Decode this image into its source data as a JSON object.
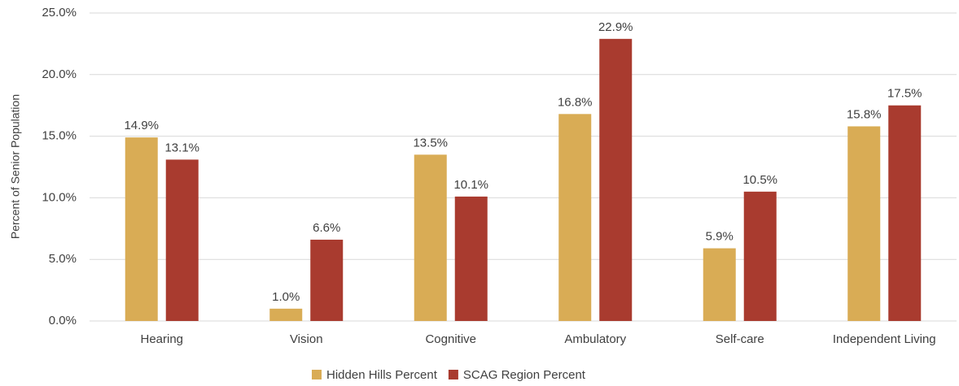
{
  "chart_data": {
    "type": "bar",
    "y_label": "Percent of Senior Population",
    "categories": [
      "Hearing",
      "Vision",
      "Cognitive",
      "Ambulatory",
      "Self-care",
      "Independent Living"
    ],
    "series": [
      {
        "name": "Hidden Hills Percent",
        "color": "#d9ac55",
        "values": [
          14.9,
          1.0,
          13.5,
          16.8,
          5.9,
          15.8
        ],
        "value_labels": [
          "14.9%",
          "1.0%",
          "13.5%",
          "16.8%",
          "5.9%",
          "15.8%"
        ]
      },
      {
        "name": "SCAG Region Percent",
        "color": "#a93b2f",
        "values": [
          13.1,
          6.6,
          10.1,
          22.9,
          10.5,
          17.5
        ],
        "value_labels": [
          "13.1%",
          "6.6%",
          "10.1%",
          "22.9%",
          "10.5%",
          "17.5%"
        ]
      }
    ],
    "ylim": [
      0,
      25
    ],
    "yticks": [
      {
        "value": 0,
        "label": "0.0%"
      },
      {
        "value": 5,
        "label": "5.0%"
      },
      {
        "value": 10,
        "label": "10.0%"
      },
      {
        "value": 15,
        "label": "15.0%"
      },
      {
        "value": 20,
        "label": "20.0%"
      },
      {
        "value": 25,
        "label": "25.0%"
      }
    ],
    "grid": true,
    "legend": "bottom"
  }
}
